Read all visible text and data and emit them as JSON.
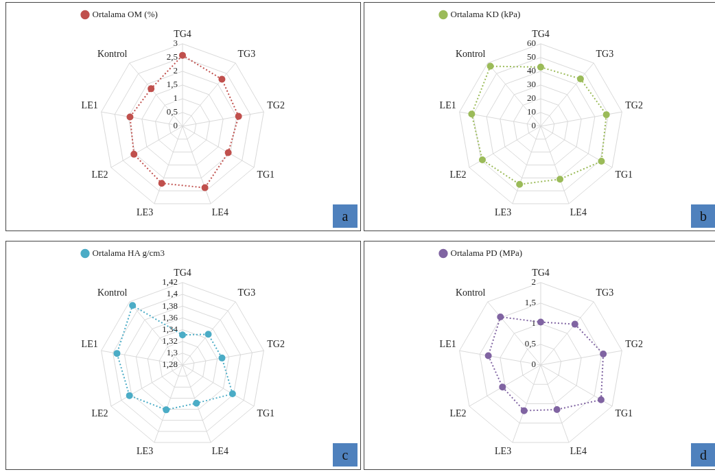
{
  "chart_data": [
    {
      "type": "radar",
      "categories": [
        "TG4",
        "TG3",
        "TG2",
        "TG1",
        "LE4",
        "LE3",
        "LE2",
        "LE1",
        "Kontrol"
      ],
      "series": [
        {
          "name": "Ortalama OM (%)",
          "color": "#c0504d",
          "values": [
            2.58,
            2.23,
            2.07,
            1.92,
            2.38,
            2.21,
            2.04,
            1.94,
            1.78
          ]
        }
      ],
      "ylim": [
        0,
        3
      ],
      "yticks": [
        0,
        {
          "value": 0.5,
          "label": "0,5"
        },
        1,
        {
          "value": 1.5,
          "label": "1,5"
        },
        2,
        {
          "value": 2.5,
          "label": "2,5"
        },
        3
      ],
      "grid": true,
      "legend": "top left",
      "marker": "circle",
      "line_style": "dotted",
      "annotations": [
        "a"
      ]
    },
    {
      "type": "radar",
      "categories": [
        "TG4",
        "TG3",
        "TG2",
        "TG1",
        "LE4",
        "LE3",
        "LE2",
        "LE1",
        "Kontrol"
      ],
      "series": [
        {
          "name": "Ortalama KD (kPa)",
          "color": "#9bbb59",
          "values": [
            43,
            45,
            48.5,
            51,
            41,
            45,
            49,
            51,
            57
          ]
        }
      ],
      "ylim": [
        0,
        60
      ],
      "yticks": [
        0,
        10,
        20,
        30,
        40,
        50,
        60
      ],
      "grid": true,
      "legend": "top left",
      "marker": "circle",
      "line_style": "dotted",
      "annotations": [
        "b"
      ]
    },
    {
      "type": "radar",
      "categories": [
        "TG4",
        "TG3",
        "TG2",
        "TG1",
        "LE4",
        "LE3",
        "LE2",
        "LE1",
        "Kontrol"
      ],
      "series": [
        {
          "name": "Ortalama HA g/cm3",
          "color": "#4bacc6",
          "values": [
            1.331,
            1.348,
            1.348,
            1.378,
            1.349,
            1.361,
            1.384,
            1.393,
            1.412
          ]
        }
      ],
      "ylim": [
        1.28,
        1.42
      ],
      "yticks": [
        {
          "value": 1.28,
          "label": "1,28"
        },
        {
          "value": 1.3,
          "label": "1,3"
        },
        {
          "value": 1.32,
          "label": "1,32"
        },
        {
          "value": 1.34,
          "label": "1,34"
        },
        {
          "value": 1.36,
          "label": "1,36"
        },
        {
          "value": 1.38,
          "label": "1,38"
        },
        {
          "value": 1.4,
          "label": "1,4"
        },
        {
          "value": 1.42,
          "label": "1,42"
        }
      ],
      "grid": true,
      "legend": "top left",
      "marker": "circle",
      "line_style": "dotted",
      "annotations": [
        "c"
      ]
    },
    {
      "type": "radar",
      "categories": [
        "TG4",
        "TG3",
        "TG2",
        "TG1",
        "LE4",
        "LE3",
        "LE2",
        "LE1",
        "Kontrol"
      ],
      "series": [
        {
          "name": "Ortalama PD (MPa)",
          "color": "#8064a2",
          "values": [
            1.04,
            1.29,
            1.54,
            1.69,
            1.15,
            1.18,
            1.07,
            1.29,
            1.52
          ]
        }
      ],
      "ylim": [
        0,
        2
      ],
      "yticks": [
        0,
        {
          "value": 0.5,
          "label": "0,5"
        },
        1,
        {
          "value": 1.5,
          "label": "1,5"
        },
        2
      ],
      "grid": true,
      "legend": "top left",
      "marker": "circle",
      "line_style": "dotted",
      "annotations": [
        "d"
      ]
    }
  ]
}
